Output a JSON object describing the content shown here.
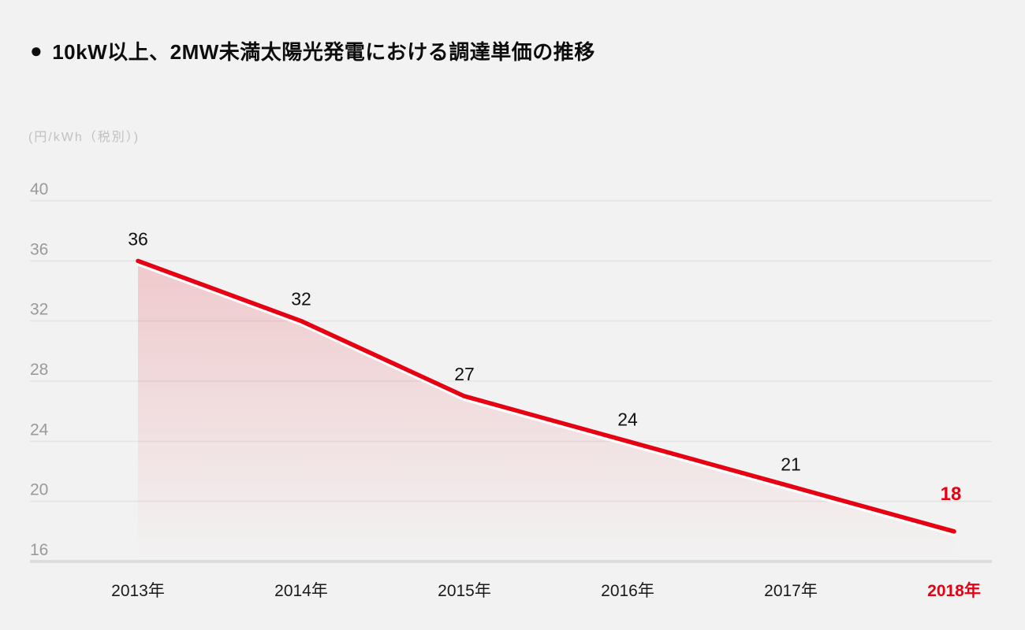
{
  "header": {
    "bullet": "●",
    "title": "10kW以上、2MW未満太陽光発電における調達単価の推移"
  },
  "colors": {
    "background": "#f2f2f2",
    "accent_red": "#e60012",
    "grid_line": "#e4e3e3",
    "axis_baseline": "#dcdcdc",
    "tick_text": "#9a9a9a",
    "label_text": "#111111",
    "unit_text": "#c2c1c1",
    "area_top_opacity": 0.17
  },
  "chart_data": {
    "type": "area",
    "title": "10kW以上、2MW未満太陽光発電における調達単価の推移",
    "unit_label": "(円/kWh（税別）)",
    "categories": [
      "2013年",
      "2014年",
      "2015年",
      "2016年",
      "2017年",
      "2018年"
    ],
    "values": [
      36,
      32,
      27,
      24,
      21,
      18
    ],
    "highlight_index": 5,
    "y_ticks": [
      40,
      36,
      32,
      28,
      24,
      20,
      16
    ],
    "ylim": [
      16,
      40
    ],
    "ylabel": "円/kWh（税別）",
    "xlabel": "",
    "grid": true,
    "legend": false
  }
}
